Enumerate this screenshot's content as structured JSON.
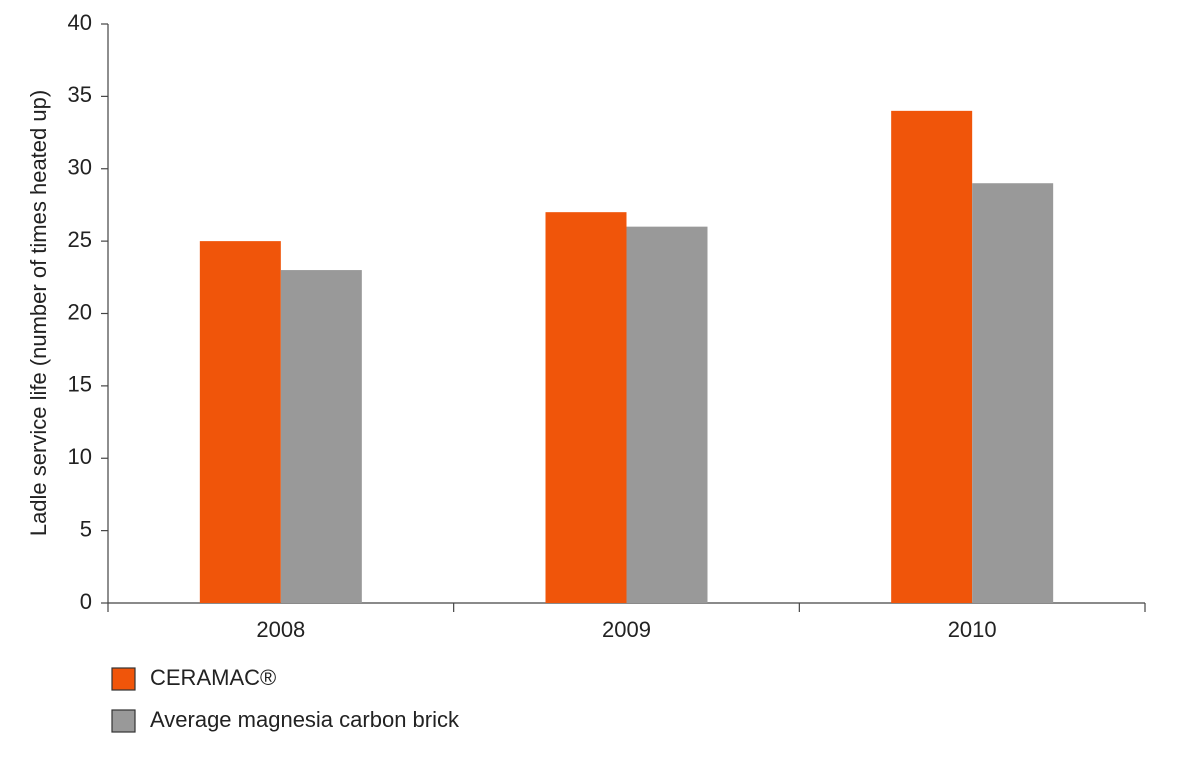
{
  "chart_data": {
    "type": "bar",
    "y_label": "Ladle service life  (number of times heated up)",
    "categories": [
      "2008",
      "2009",
      "2010"
    ],
    "series": [
      {
        "name": "CERAMAC®",
        "color": "#f0550a",
        "values": [
          25,
          27,
          34
        ]
      },
      {
        "name": "Average magnesia carbon brick",
        "color": "#999999",
        "values": [
          23,
          26,
          29
        ]
      }
    ],
    "ylim": [
      0,
      40
    ],
    "yticks": [
      0,
      5,
      10,
      15,
      20,
      25,
      30,
      35,
      40
    ],
    "grid": false,
    "legend": "bottom-left"
  }
}
